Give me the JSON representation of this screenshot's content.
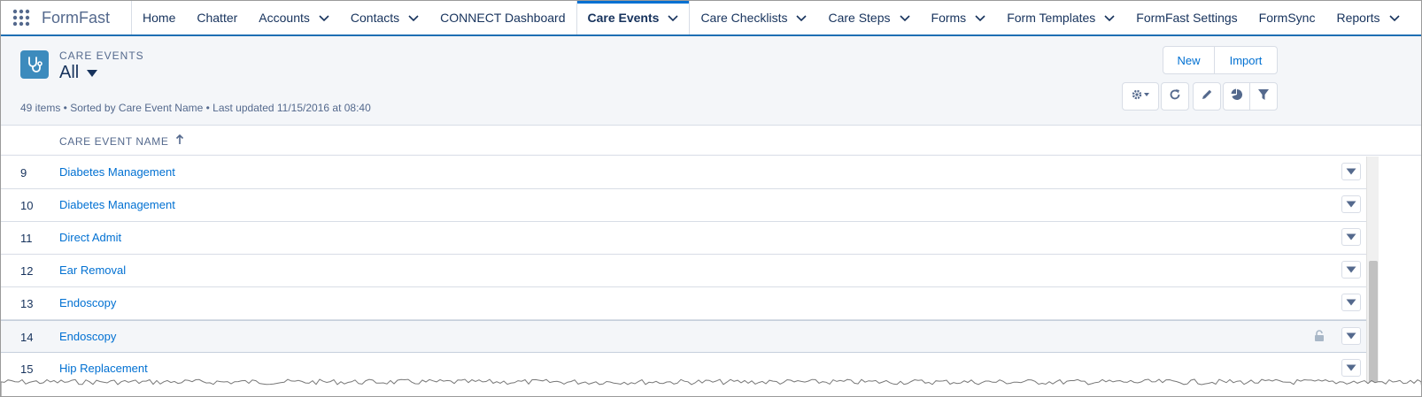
{
  "app": {
    "name": "FormFast"
  },
  "nav": {
    "tabs": [
      {
        "label": "Home",
        "has_menu": false
      },
      {
        "label": "Chatter",
        "has_menu": false
      },
      {
        "label": "Accounts",
        "has_menu": true
      },
      {
        "label": "Contacts",
        "has_menu": true
      },
      {
        "label": "CONNECT Dashboard",
        "has_menu": false
      },
      {
        "label": "Care Events",
        "has_menu": true,
        "active": true
      },
      {
        "label": "Care Checklists",
        "has_menu": true
      },
      {
        "label": "Care Steps",
        "has_menu": true
      },
      {
        "label": "Forms",
        "has_menu": true
      },
      {
        "label": "Form Templates",
        "has_menu": true
      },
      {
        "label": "FormFast Settings",
        "has_menu": false
      },
      {
        "label": "FormSync",
        "has_menu": false
      },
      {
        "label": "Reports",
        "has_menu": true
      }
    ]
  },
  "header": {
    "object_label": "CARE EVENTS",
    "view_name": "All",
    "meta": "49 items • Sorted by Care Event Name • Last updated 11/15/2016 at 08:40",
    "buttons": {
      "new": "New",
      "import": "Import"
    }
  },
  "table": {
    "column_header": "CARE EVENT NAME",
    "rows": [
      {
        "num": "9",
        "name": "Diabetes Management"
      },
      {
        "num": "10",
        "name": "Diabetes Management"
      },
      {
        "num": "11",
        "name": "Direct Admit"
      },
      {
        "num": "12",
        "name": "Ear Removal"
      },
      {
        "num": "13",
        "name": "Endoscopy"
      },
      {
        "num": "14",
        "name": "Endoscopy",
        "highlighted": true,
        "locked": true
      },
      {
        "num": "15",
        "name": "Hip Replacement"
      }
    ]
  },
  "colors": {
    "brand_blue": "#0070d2",
    "icon_teal": "#3d8bbd",
    "text_dark": "#16325c",
    "text_muted": "#54698d"
  }
}
